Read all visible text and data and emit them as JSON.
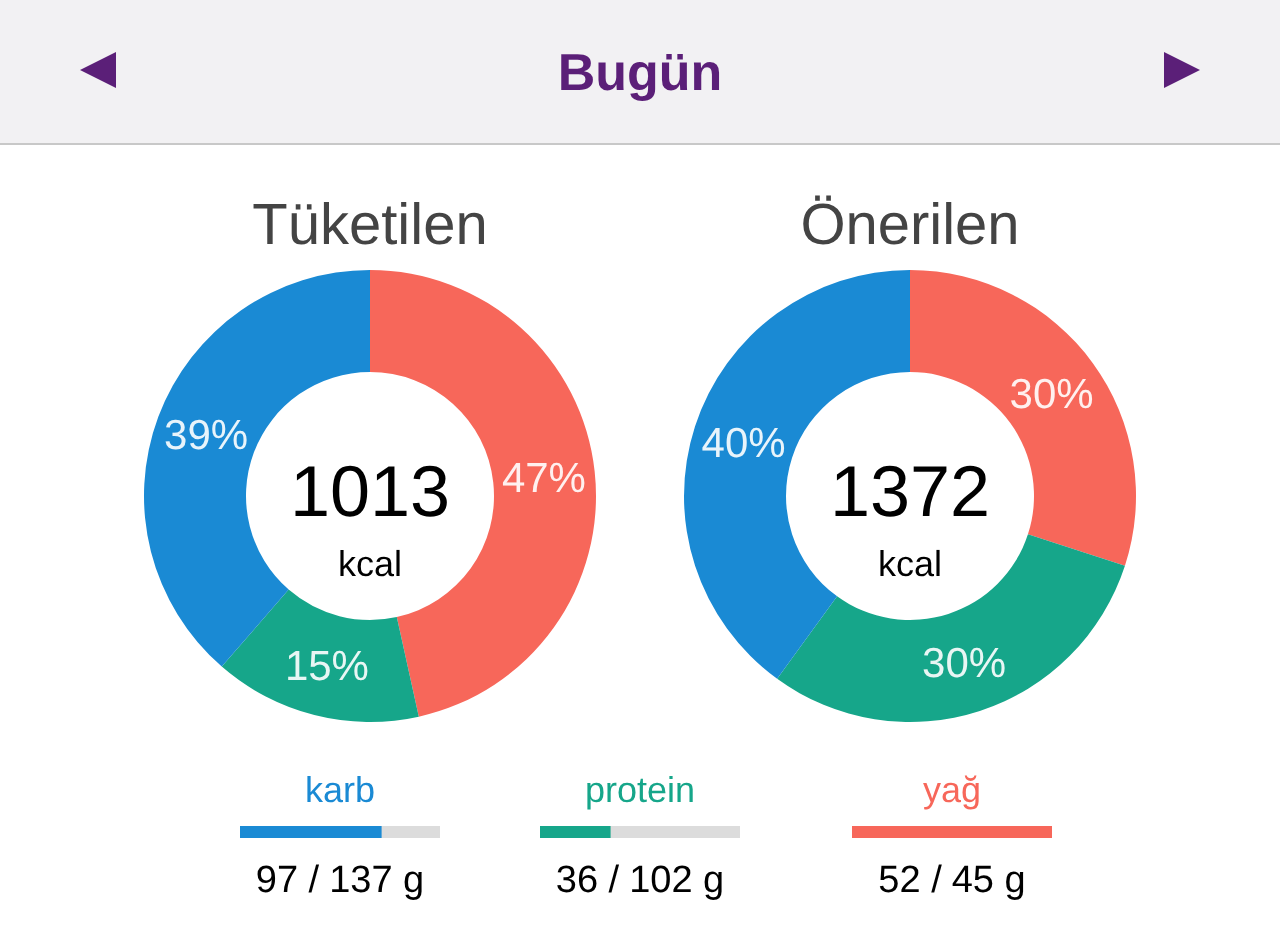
{
  "chart_data": [
    {
      "type": "other",
      "title": "Bugün"
    },
    {
      "type": "donut",
      "title": "Tüketilen",
      "categories": [
        null,
        null,
        null
      ],
      "values": [
        47,
        15,
        39
      ],
      "colors": [
        "#f7675a",
        "#16a68a",
        "#1a8ad4"
      ],
      "value_labels": [
        "47%",
        "15%",
        "39%"
      ],
      "annotations": [
        "1013",
        "kcal"
      ]
    },
    {
      "type": "donut",
      "title": "Önerilen",
      "categories": [
        null,
        null,
        null
      ],
      "values": [
        30,
        30,
        40
      ],
      "colors": [
        "#f7675a",
        "#16a68a",
        "#1a8ad4"
      ],
      "value_labels": [
        "30%",
        "30%",
        "40%"
      ],
      "annotations": [
        "1372",
        "kcal"
      ]
    },
    {
      "type": "other",
      "categories": [
        "karb",
        "protein",
        "yağ"
      ],
      "colors": [
        "#1a8ad4",
        "#16a68a",
        "#f7675a"
      ],
      "series": [
        {
          "values": [
            97,
            36,
            52
          ],
          "value_labels": [
            "97 /",
            "36 /",
            "52 /"
          ]
        },
        {
          "values": [
            137,
            102,
            45
          ],
          "value_labels": [
            "137 g",
            "102 g",
            "45 g"
          ]
        }
      ]
    }
  ]
}
